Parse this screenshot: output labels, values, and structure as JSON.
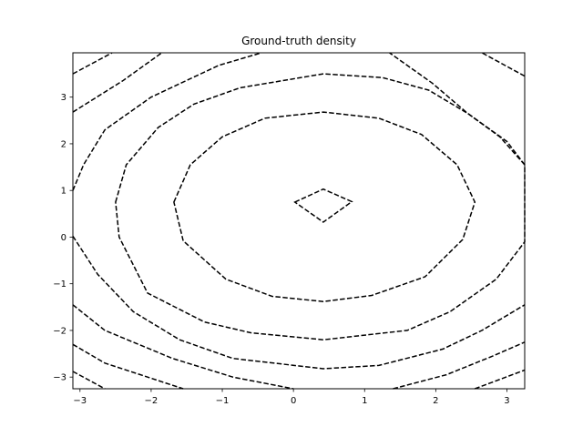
{
  "chart_data": {
    "type": "contour",
    "title": "Ground-truth density",
    "xlabel": "",
    "ylabel": "",
    "xlim": [
      -3.1,
      3.25
    ],
    "ylim": [
      -3.25,
      3.95
    ],
    "xticks": [
      -3,
      -2,
      -1,
      0,
      1,
      2,
      3
    ],
    "yticks": [
      -3,
      -2,
      -1,
      0,
      1,
      2,
      3
    ],
    "grid": false,
    "line_style": "dashed",
    "line_color": "#000000",
    "contours": [
      {
        "name": "level-1",
        "points": [
          [
            0.02,
            0.75
          ],
          [
            0.42,
            1.03
          ],
          [
            0.82,
            0.76
          ],
          [
            0.42,
            0.32
          ],
          [
            0.02,
            0.75
          ]
        ],
        "closed": true
      },
      {
        "name": "level-2",
        "points": [
          [
            -1.68,
            0.75
          ],
          [
            -1.45,
            1.55
          ],
          [
            -1.0,
            2.15
          ],
          [
            -0.4,
            2.55
          ],
          [
            0.42,
            2.68
          ],
          [
            1.2,
            2.55
          ],
          [
            1.8,
            2.2
          ],
          [
            2.3,
            1.55
          ],
          [
            2.55,
            0.75
          ],
          [
            2.38,
            -0.05
          ],
          [
            1.85,
            -0.85
          ],
          [
            1.1,
            -1.25
          ],
          [
            0.42,
            -1.38
          ],
          [
            -0.3,
            -1.27
          ],
          [
            -0.95,
            -0.9
          ],
          [
            -1.55,
            -0.08
          ],
          [
            -1.68,
            0.75
          ]
        ],
        "closed": true
      },
      {
        "name": "level-3",
        "points": [
          [
            -2.5,
            0.75
          ],
          [
            -2.35,
            1.55
          ],
          [
            -1.9,
            2.35
          ],
          [
            -1.4,
            2.85
          ],
          [
            -0.75,
            3.2
          ],
          [
            0.42,
            3.5
          ],
          [
            1.25,
            3.42
          ],
          [
            1.9,
            3.15
          ],
          [
            2.45,
            2.65
          ],
          [
            3.0,
            2.05
          ],
          [
            3.25,
            1.55
          ],
          [
            3.25,
            -0.1
          ],
          [
            2.85,
            -0.9
          ],
          [
            2.2,
            -1.6
          ],
          [
            1.6,
            -2.0
          ],
          [
            0.42,
            -2.2
          ],
          [
            -0.6,
            -2.05
          ],
          [
            -1.25,
            -1.82
          ],
          [
            -2.05,
            -1.2
          ],
          [
            -2.45,
            0.0
          ],
          [
            -2.5,
            0.75
          ]
        ],
        "closed": true
      },
      {
        "name": "level-4-left",
        "points": [
          [
            -3.1,
            1.0
          ],
          [
            -2.95,
            1.55
          ],
          [
            -2.65,
            2.3
          ],
          [
            -2.0,
            3.0
          ],
          [
            -1.05,
            3.68
          ],
          [
            -0.45,
            3.95
          ]
        ],
        "closed": false
      },
      {
        "name": "level-4-right",
        "points": [
          [
            3.25,
            1.55
          ],
          [
            2.9,
            2.15
          ],
          [
            2.45,
            2.65
          ],
          [
            1.95,
            3.3
          ],
          [
            1.35,
            3.95
          ]
        ],
        "closed": false
      },
      {
        "name": "level-4-bottom",
        "points": [
          [
            -3.1,
            0.02
          ],
          [
            -2.75,
            -0.8
          ],
          [
            -2.25,
            -1.6
          ],
          [
            -1.6,
            -2.2
          ],
          [
            -0.85,
            -2.6
          ],
          [
            0.42,
            -2.82
          ],
          [
            1.2,
            -2.75
          ],
          [
            2.1,
            -2.4
          ],
          [
            2.65,
            -2.0
          ],
          [
            3.25,
            -1.45
          ]
        ],
        "closed": false
      },
      {
        "name": "level-5-topleft",
        "points": [
          [
            -3.1,
            2.68
          ],
          [
            -2.4,
            3.35
          ],
          [
            -1.85,
            3.95
          ]
        ],
        "closed": false
      },
      {
        "name": "level-5-topright",
        "points": [
          [
            3.25,
            3.45
          ],
          [
            2.65,
            3.95
          ]
        ],
        "closed": false
      },
      {
        "name": "level-5-bottomleft",
        "points": [
          [
            -3.1,
            -1.45
          ],
          [
            -2.65,
            -2.0
          ],
          [
            -1.7,
            -2.6
          ],
          [
            -0.85,
            -3.0
          ],
          [
            0.0,
            -3.25
          ]
        ],
        "closed": false
      },
      {
        "name": "level-5-bottomright",
        "points": [
          [
            1.4,
            -3.25
          ],
          [
            2.15,
            -2.95
          ],
          [
            2.8,
            -2.55
          ],
          [
            3.25,
            -2.25
          ]
        ],
        "closed": false
      },
      {
        "name": "level-6-topleft",
        "points": [
          [
            -3.1,
            3.5
          ],
          [
            -2.55,
            3.95
          ]
        ],
        "closed": false
      },
      {
        "name": "level-6-bottomleft",
        "points": [
          [
            -3.1,
            -2.3
          ],
          [
            -2.65,
            -2.7
          ],
          [
            -1.85,
            -3.1
          ],
          [
            -1.55,
            -3.25
          ]
        ],
        "closed": false
      },
      {
        "name": "level-6-bottomright",
        "points": [
          [
            2.55,
            -3.25
          ],
          [
            3.25,
            -2.85
          ]
        ],
        "closed": false
      },
      {
        "name": "level-7-bottomleft",
        "points": [
          [
            -3.1,
            -2.88
          ],
          [
            -2.65,
            -3.25
          ]
        ],
        "closed": false
      }
    ]
  }
}
